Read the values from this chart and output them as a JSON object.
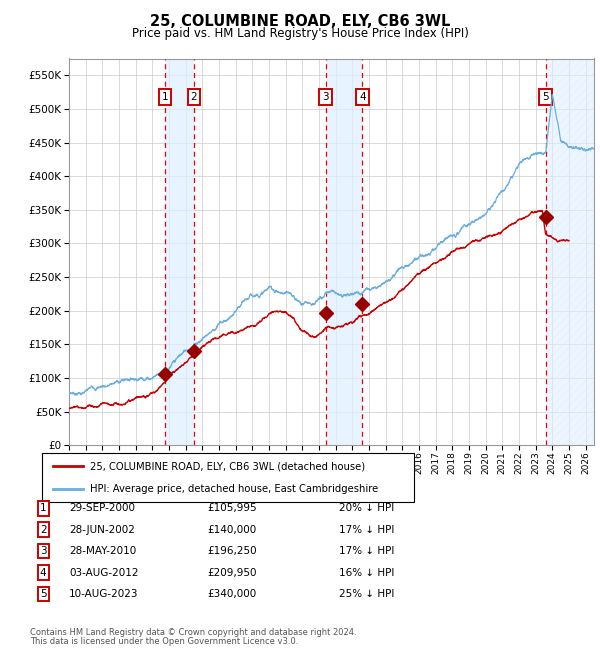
{
  "title": "25, COLUMBINE ROAD, ELY, CB6 3WL",
  "subtitle": "Price paid vs. HM Land Registry's House Price Index (HPI)",
  "legend_line1": "25, COLUMBINE ROAD, ELY, CB6 3WL (detached house)",
  "legend_line2": "HPI: Average price, detached house, East Cambridgeshire",
  "footer1": "Contains HM Land Registry data © Crown copyright and database right 2024.",
  "footer2": "This data is licensed under the Open Government Licence v3.0.",
  "hpi_color": "#6aaee0",
  "price_color": "#cc0000",
  "marker_color": "#990000",
  "dashed_color": "#ee0000",
  "shade_color": "#ddeeff",
  "ylim": [
    0,
    575000
  ],
  "yticks": [
    0,
    50000,
    100000,
    150000,
    200000,
    250000,
    300000,
    350000,
    400000,
    450000,
    500000,
    550000
  ],
  "xlim_start": 1995.0,
  "xlim_end": 2026.5,
  "sales": [
    {
      "num": 1,
      "date": "29-SEP-2000",
      "price": 105995,
      "pct": "20%",
      "x_year": 2000.75
    },
    {
      "num": 2,
      "date": "28-JUN-2002",
      "price": 140000,
      "pct": "17%",
      "x_year": 2002.5
    },
    {
      "num": 3,
      "date": "28-MAY-2010",
      "price": 196250,
      "pct": "17%",
      "x_year": 2010.4
    },
    {
      "num": 4,
      "date": "03-AUG-2012",
      "price": 209950,
      "pct": "16%",
      "x_year": 2012.6
    },
    {
      "num": 5,
      "date": "10-AUG-2023",
      "price": 340000,
      "pct": "25%",
      "x_year": 2023.6
    }
  ],
  "shade_ranges": [
    [
      2000.75,
      2002.5
    ],
    [
      2010.4,
      2012.6
    ]
  ],
  "hatch_range": [
    2023.6,
    2026.5
  ],
  "table_rows": [
    [
      "1",
      "29-SEP-2000",
      "£105,995",
      "20% ↓ HPI"
    ],
    [
      "2",
      "28-JUN-2002",
      "£140,000",
      "17% ↓ HPI"
    ],
    [
      "3",
      "28-MAY-2010",
      "£196,250",
      "17% ↓ HPI"
    ],
    [
      "4",
      "03-AUG-2012",
      "£209,950",
      "16% ↓ HPI"
    ],
    [
      "5",
      "10-AUG-2023",
      "£340,000",
      "25% ↓ HPI"
    ]
  ]
}
